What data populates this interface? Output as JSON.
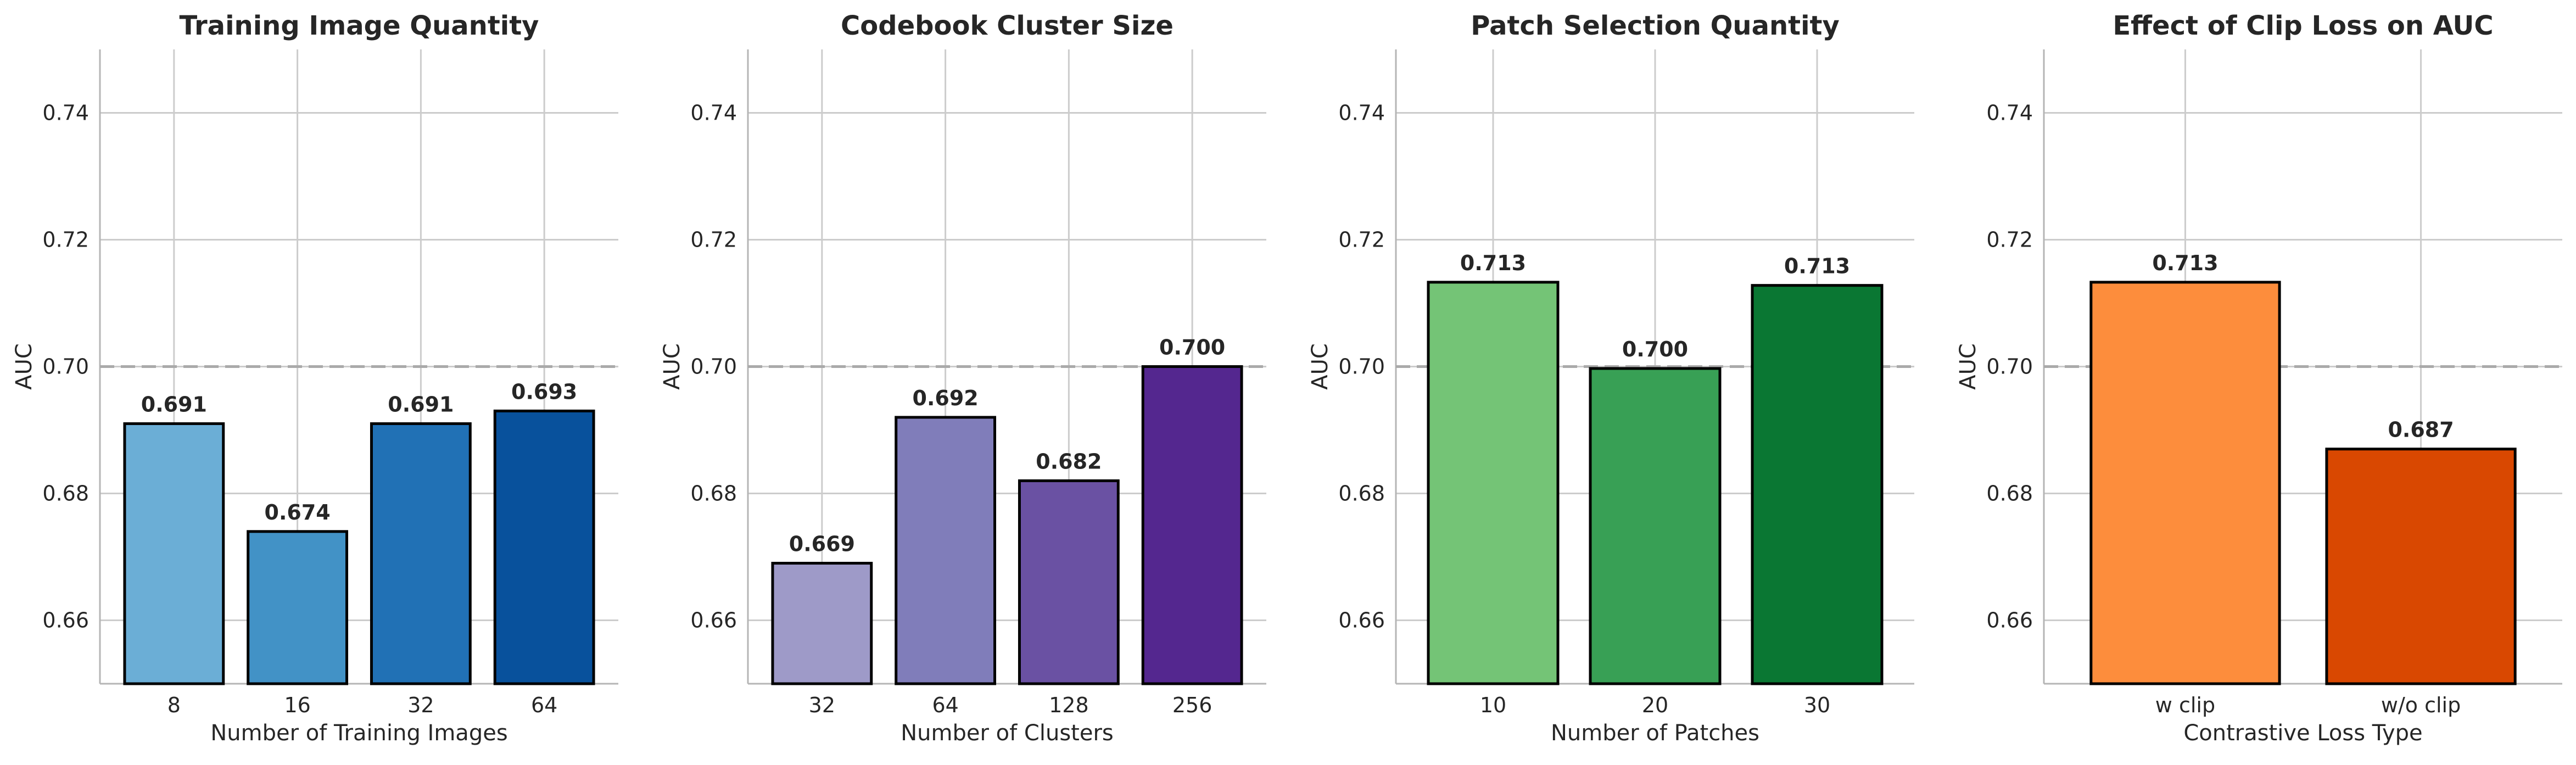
{
  "chart_data": [
    {
      "type": "bar",
      "title": "Training Image Quantity",
      "xlabel": "Number of Training Images",
      "ylabel": "AUC",
      "categories": [
        "8",
        "16",
        "32",
        "64"
      ],
      "values": [
        0.691,
        0.674,
        0.691,
        0.693
      ],
      "value_labels": [
        "0.691",
        "0.674",
        "0.691",
        "0.693"
      ],
      "colors": [
        "#6baed6",
        "#4292c6",
        "#2171b5",
        "#08519c"
      ],
      "ylim": [
        0.65,
        0.75
      ],
      "yticks": [
        0.66,
        0.68,
        0.7,
        0.72,
        0.74
      ],
      "ytick_labels": [
        "0.66",
        "0.68",
        "0.70",
        "0.72",
        "0.74"
      ],
      "reference_line": 0.7,
      "grid": true
    },
    {
      "type": "bar",
      "title": "Codebook Cluster Size",
      "xlabel": "Number of Clusters",
      "ylabel": "AUC",
      "categories": [
        "32",
        "64",
        "128",
        "256"
      ],
      "values": [
        0.669,
        0.692,
        0.682,
        0.7
      ],
      "value_labels": [
        "0.669",
        "0.692",
        "0.682",
        "0.700"
      ],
      "colors": [
        "#9e9ac8",
        "#807dba",
        "#6a51a3",
        "#54278f"
      ],
      "ylim": [
        0.65,
        0.75
      ],
      "yticks": [
        0.66,
        0.68,
        0.7,
        0.72,
        0.74
      ],
      "ytick_labels": [
        "0.66",
        "0.68",
        "0.70",
        "0.72",
        "0.74"
      ],
      "reference_line": 0.7,
      "grid": true
    },
    {
      "type": "bar",
      "title": "Patch Selection Quantity",
      "xlabel": "Number of Patches",
      "ylabel": "AUC",
      "categories": [
        "10",
        "20",
        "30"
      ],
      "values": [
        0.7133,
        0.6997,
        0.7128
      ],
      "value_labels": [
        "0.713",
        "0.700",
        "0.713"
      ],
      "colors": [
        "#74c476",
        "#38a055",
        "#0a7733"
      ],
      "ylim": [
        0.65,
        0.75
      ],
      "yticks": [
        0.66,
        0.68,
        0.7,
        0.72,
        0.74
      ],
      "ytick_labels": [
        "0.66",
        "0.68",
        "0.70",
        "0.72",
        "0.74"
      ],
      "reference_line": 0.7,
      "grid": true
    },
    {
      "type": "bar",
      "title": "Effect of Clip Loss on AUC",
      "xlabel": "Contrastive Loss Type",
      "ylabel": "AUC",
      "categories": [
        "w clip",
        "w/o clip"
      ],
      "values": [
        0.7133,
        0.687
      ],
      "value_labels": [
        "0.713",
        "0.687"
      ],
      "colors": [
        "#fd8d3c",
        "#d94801"
      ],
      "ylim": [
        0.65,
        0.75
      ],
      "yticks": [
        0.66,
        0.68,
        0.7,
        0.72,
        0.74
      ],
      "ytick_labels": [
        "0.66",
        "0.68",
        "0.70",
        "0.72",
        "0.74"
      ],
      "reference_line": 0.7,
      "grid": true
    }
  ]
}
